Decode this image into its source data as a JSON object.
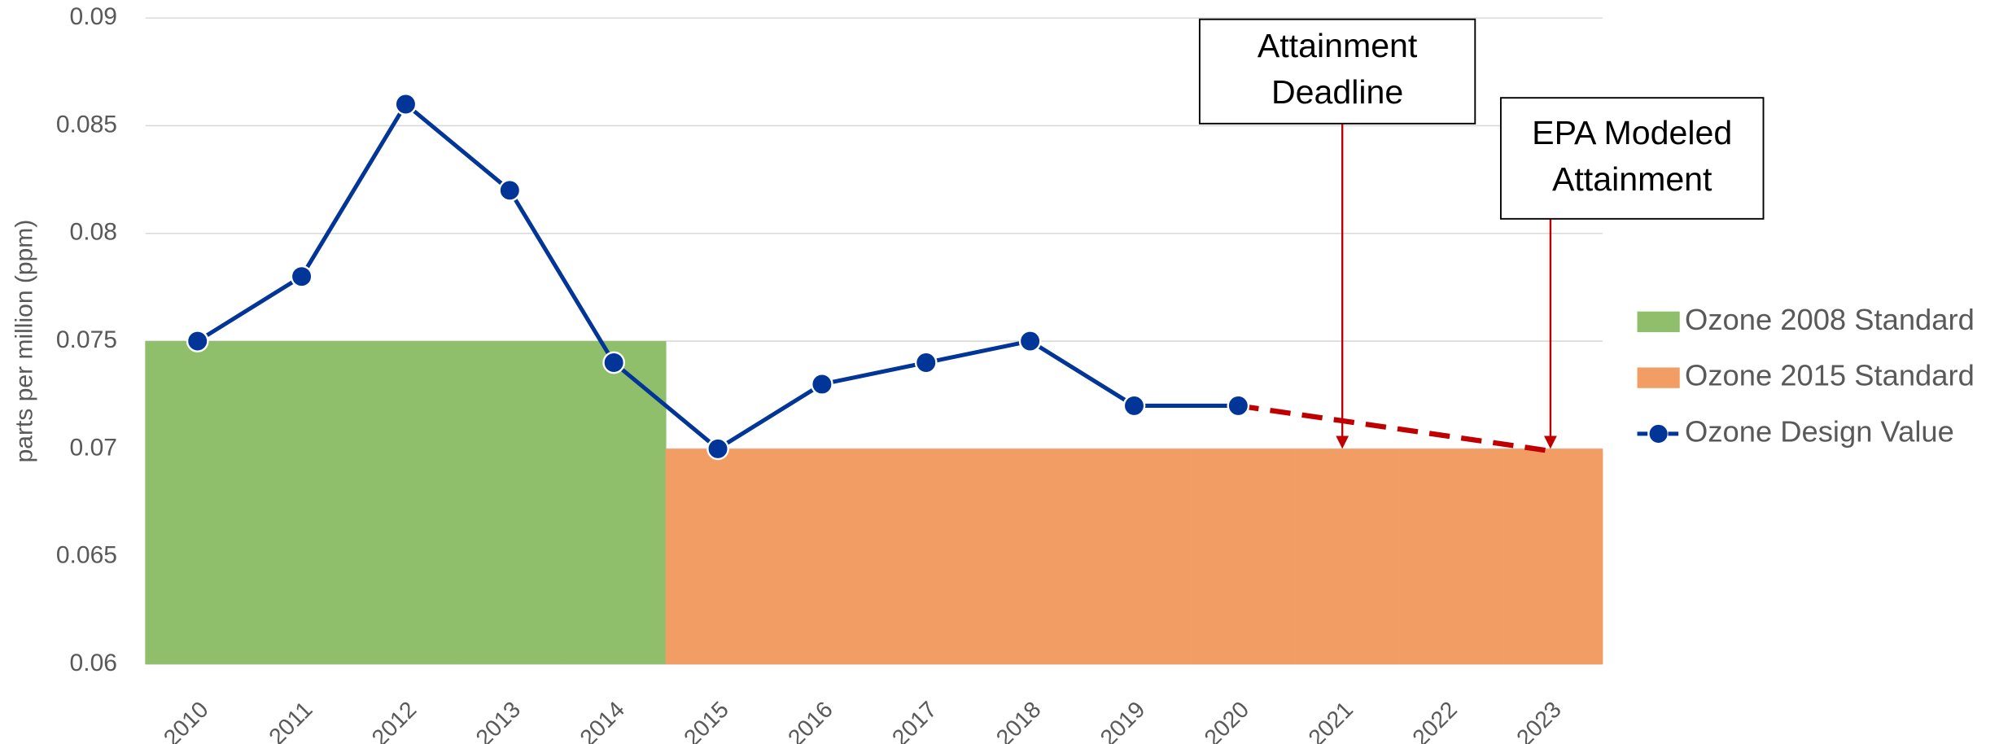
{
  "chart_data": {
    "type": "line",
    "y_axis_label": "parts per million (ppm)",
    "categories": [
      "2010",
      "2011",
      "2012",
      "2013",
      "2014",
      "2015",
      "2016",
      "2017",
      "2018",
      "2019",
      "2020",
      "2021",
      "2022",
      "2023"
    ],
    "ylim": [
      0.06,
      0.09
    ],
    "yticks": [
      0.06,
      0.065,
      0.07,
      0.075,
      0.08,
      0.085,
      0.09
    ],
    "grid": true,
    "legend": "right",
    "series": [
      {
        "name": "Ozone 2008 Standard",
        "kind": "area",
        "color": "#8fbf6a",
        "values": [
          0.075,
          0.075,
          0.075,
          0.075,
          0.075,
          null,
          null,
          null,
          null,
          null,
          null,
          null,
          null,
          null
        ]
      },
      {
        "name": "Ozone 2015 Standard",
        "kind": "area",
        "color": "#f19d63",
        "values": [
          null,
          null,
          null,
          null,
          null,
          0.07,
          0.07,
          0.07,
          0.07,
          0.07,
          0.07,
          0.07,
          0.07,
          0.07
        ]
      },
      {
        "name": "Ozone Design Value",
        "kind": "line",
        "color": "#023598",
        "projection_color": "#c00000",
        "values": [
          0.075,
          0.078,
          0.086,
          0.082,
          0.074,
          0.07,
          0.073,
          0.074,
          0.075,
          0.072,
          0.072,
          null,
          null,
          null
        ],
        "projected_values": [
          null,
          null,
          null,
          null,
          null,
          null,
          null,
          null,
          null,
          null,
          0.072,
          null,
          null,
          0.0699
        ]
      }
    ],
    "annotations": [
      {
        "lines": [
          "Attainment",
          "Deadline"
        ],
        "x": "2021",
        "y": 0.07
      },
      {
        "lines": [
          "EPA Modeled",
          "Attainment"
        ],
        "x": "2023",
        "y": 0.07
      }
    ]
  }
}
